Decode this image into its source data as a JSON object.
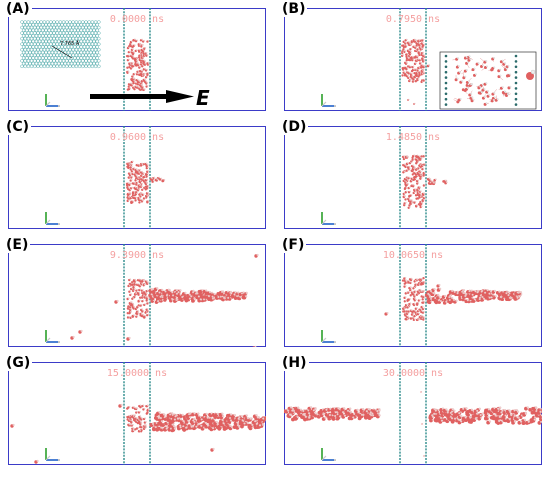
{
  "panels": [
    {
      "label": "(A)",
      "time": "0.0000  ns"
    },
    {
      "label": "(B)",
      "time": "0.7950  ns"
    },
    {
      "label": "(C)",
      "time": "0.9600  ns"
    },
    {
      "label": "(D)",
      "time": "1.4850  ns"
    },
    {
      "label": "(E)",
      "time": "9.3900  ns"
    },
    {
      "label": "(F)",
      "time": "10.0650  ns"
    },
    {
      "label": "(G)",
      "time": "15.0000  ns"
    },
    {
      "label": "(H)",
      "time": "30.0000  ns"
    }
  ],
  "graphene_inset": {
    "label": "7.765 Å"
  },
  "field_arrow": {
    "label": "E"
  },
  "colors": {
    "frame": "#3b3bc8",
    "membrane": "#2a8a8a",
    "water_oxygen": "#e06060",
    "water_hydrogen": "#f0d0d0",
    "graphene": "#4aa6a6",
    "time_text": "#f4a0a0"
  }
}
